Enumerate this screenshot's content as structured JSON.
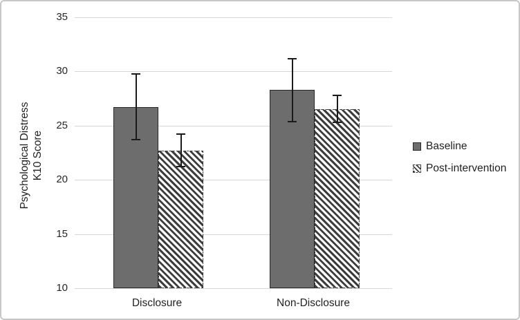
{
  "figure": {
    "background": "#ffffff",
    "border_color": "#c6c6c6",
    "text_color": "#1f1f1f"
  },
  "chart_data": {
    "type": "bar",
    "title": "",
    "ylabel_line1": "Psychological Distress",
    "ylabel_line2": "K10 Score",
    "xlabel": "",
    "categories": [
      "Disclosure",
      "Non-Disclosure"
    ],
    "series": [
      {
        "name": "Baseline",
        "style": "solid",
        "fill": "#6d6d6d",
        "border_color": "#262626",
        "values": [
          26.7,
          28.3
        ],
        "error_low": [
          23.7,
          25.4
        ],
        "error_high": [
          29.8,
          31.2
        ]
      },
      {
        "name": "Post-intervention",
        "style": "hatched",
        "fill": "#ffffff",
        "hatch_color": "#3d3d3d",
        "border_color": "#3d3d3d",
        "values": [
          22.7,
          26.5
        ],
        "error_low": [
          21.2,
          25.3
        ],
        "error_high": [
          24.2,
          27.8
        ]
      }
    ],
    "ylim": [
      10,
      35
    ],
    "yticks": [
      35,
      30,
      25,
      20,
      15,
      10
    ],
    "grid": true,
    "gridline_color": "#d6d6d6",
    "error_bar_color": "#1a1a1a",
    "legend_position": "right"
  }
}
